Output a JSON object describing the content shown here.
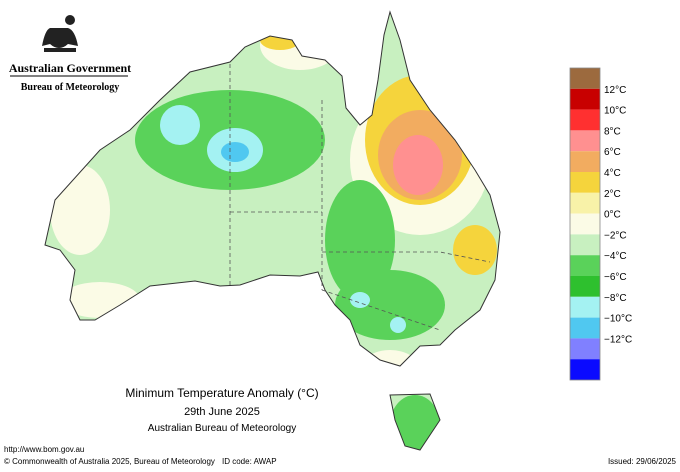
{
  "header": {
    "government": "Australian Government",
    "bureau": "Bureau of Meteorology"
  },
  "legend": {
    "labels": [
      "12°C",
      "10°C",
      "8°C",
      "6°C",
      "4°C",
      "2°C",
      "0°C",
      "−2°C",
      "−4°C",
      "−6°C",
      "−8°C",
      "−10°C",
      "−12°C"
    ],
    "colors": [
      "#9c6a3e",
      "#c80000",
      "#ff3030",
      "#ff9090",
      "#f2ac60",
      "#f5d43c",
      "#f8f2a8",
      "#fbfbe6",
      "#c8f0c0",
      "#5ad25a",
      "#2ec02e",
      "#a4f2f2",
      "#50c8f0",
      "#8080ff",
      "#0a0aff"
    ]
  },
  "caption": {
    "title": "Minimum Temperature Anomaly (°C)",
    "date": "29th June 2025",
    "source": "Australian Bureau of Meteorology"
  },
  "footer": {
    "url": "http://www.bom.gov.au",
    "copyright": "© Commonwealth of Australia 2025, Bureau of Meteorology",
    "id_code": "ID code: AWAP",
    "issued": "Issued: 29/06/2025"
  }
}
